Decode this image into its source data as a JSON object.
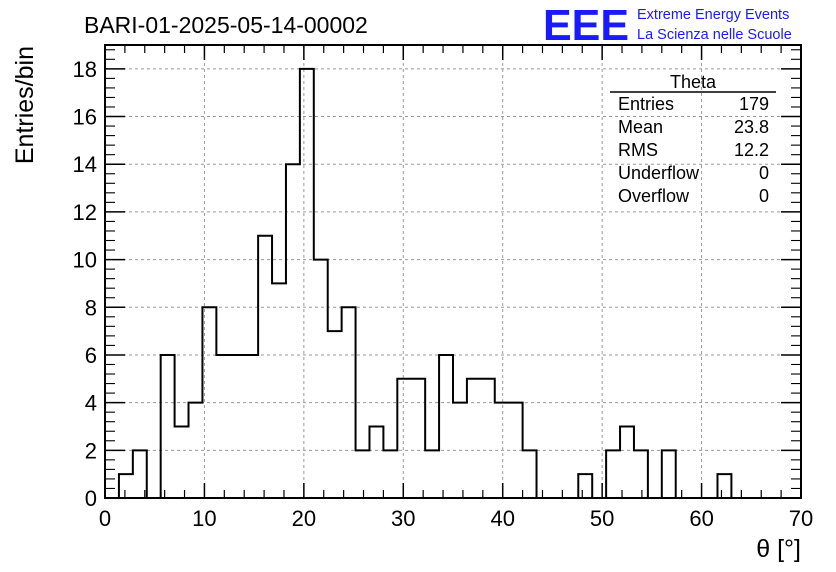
{
  "header": {
    "run_id": "BARI-01-2025-05-14-00002",
    "logo_text": "EEE",
    "logo_line1": "Extreme Energy Events",
    "logo_line2": "La Scienza nelle Scuole",
    "logo_color": "#1a1aff"
  },
  "stats": {
    "title": "Theta",
    "rows": [
      {
        "label": "Entries",
        "value": "179"
      },
      {
        "label": "Mean",
        "value": "23.8"
      },
      {
        "label": "RMS",
        "value": "12.2"
      },
      {
        "label": "Underflow",
        "value": "0"
      },
      {
        "label": "Overflow",
        "value": "0"
      }
    ]
  },
  "chart_data": {
    "type": "histogram",
    "xlabel": "θ [°]",
    "ylabel": "Entries/bin",
    "xlim": [
      0,
      70
    ],
    "ylim": [
      0,
      19
    ],
    "x_ticks": [
      0,
      10,
      20,
      30,
      40,
      50,
      60,
      70
    ],
    "y_ticks": [
      0,
      2,
      4,
      6,
      8,
      10,
      12,
      14,
      16,
      18
    ],
    "grid": true,
    "line_color": "#000000",
    "bins": [
      {
        "x0": 1.4,
        "x1": 2.8,
        "y": 1
      },
      {
        "x0": 2.8,
        "x1": 4.2,
        "y": 2
      },
      {
        "x0": 4.2,
        "x1": 5.6,
        "y": 0
      },
      {
        "x0": 5.6,
        "x1": 7.0,
        "y": 6
      },
      {
        "x0": 7.0,
        "x1": 8.4,
        "y": 3
      },
      {
        "x0": 8.4,
        "x1": 9.8,
        "y": 4
      },
      {
        "x0": 9.8,
        "x1": 11.2,
        "y": 8
      },
      {
        "x0": 11.2,
        "x1": 15.4,
        "y": 6
      },
      {
        "x0": 15.4,
        "x1": 16.8,
        "y": 11
      },
      {
        "x0": 16.8,
        "x1": 18.2,
        "y": 9
      },
      {
        "x0": 18.2,
        "x1": 19.6,
        "y": 14
      },
      {
        "x0": 19.6,
        "x1": 21.0,
        "y": 18
      },
      {
        "x0": 21.0,
        "x1": 22.4,
        "y": 10
      },
      {
        "x0": 22.4,
        "x1": 23.8,
        "y": 7
      },
      {
        "x0": 23.8,
        "x1": 25.2,
        "y": 8
      },
      {
        "x0": 25.2,
        "x1": 26.6,
        "y": 2
      },
      {
        "x0": 26.6,
        "x1": 28.0,
        "y": 3
      },
      {
        "x0": 28.0,
        "x1": 29.4,
        "y": 2
      },
      {
        "x0": 29.4,
        "x1": 32.2,
        "y": 5
      },
      {
        "x0": 32.2,
        "x1": 33.6,
        "y": 2
      },
      {
        "x0": 33.6,
        "x1": 35.0,
        "y": 6
      },
      {
        "x0": 35.0,
        "x1": 36.4,
        "y": 4
      },
      {
        "x0": 36.4,
        "x1": 39.2,
        "y": 5
      },
      {
        "x0": 39.2,
        "x1": 42.0,
        "y": 4
      },
      {
        "x0": 42.0,
        "x1": 43.4,
        "y": 2
      },
      {
        "x0": 43.4,
        "x1": 47.6,
        "y": 0
      },
      {
        "x0": 47.6,
        "x1": 49.0,
        "y": 1
      },
      {
        "x0": 49.0,
        "x1": 50.4,
        "y": 0
      },
      {
        "x0": 50.4,
        "x1": 51.8,
        "y": 2
      },
      {
        "x0": 51.8,
        "x1": 53.2,
        "y": 3
      },
      {
        "x0": 53.2,
        "x1": 54.6,
        "y": 2
      },
      {
        "x0": 54.6,
        "x1": 56.0,
        "y": 0
      },
      {
        "x0": 56.0,
        "x1": 57.4,
        "y": 2
      },
      {
        "x0": 57.4,
        "x1": 61.6,
        "y": 0
      },
      {
        "x0": 61.6,
        "x1": 63.0,
        "y": 1
      }
    ]
  }
}
